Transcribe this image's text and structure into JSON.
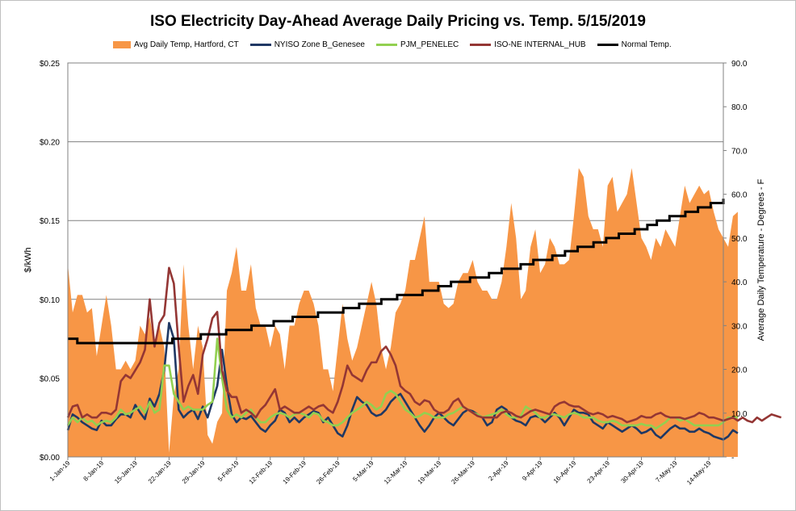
{
  "chart_data": {
    "type": "line",
    "title": "ISO Electricity Day-Ahead Average Daily Pricing vs. Temp. 5/15/2019",
    "ylabel": "$/kWh",
    "y2label": "Average Daily Temperature - Degrees - F",
    "ylim": [
      0,
      0.25
    ],
    "y2lim": [
      0,
      90
    ],
    "y_ticks": [
      "$0.00",
      "$0.05",
      "$0.10",
      "$0.15",
      "$0.20",
      "$0.25"
    ],
    "y2_ticks": [
      "-",
      "10.0",
      "20.0",
      "30.0",
      "40.0",
      "50.0",
      "60.0",
      "70.0",
      "80.0",
      "90.0"
    ],
    "x_ticks": [
      "1-Jan-19",
      "8-Jan-19",
      "15-Jan-19",
      "22-Jan-19",
      "29-Jan-19",
      "5-Feb-19",
      "12-Feb-19",
      "19-Feb-19",
      "26-Feb-19",
      "5-Mar-19",
      "12-Mar-19",
      "19-Mar-19",
      "26-Mar-19",
      "2-Apr-19",
      "9-Apr-19",
      "16-Apr-19",
      "23-Apr-19",
      "30-Apr-19",
      "7-May-19",
      "14-May-19"
    ],
    "x_start": "1-Jan-19",
    "x_end": "16-May-19",
    "grid": true,
    "legend_position": "top",
    "series": [
      {
        "name": "Avg Daily Temp, Hartford, CT",
        "type": "area",
        "axis": "right",
        "color": "#f79646",
        "values": [
          44,
          33,
          37,
          37,
          33,
          34,
          23,
          30,
          37,
          30,
          20,
          20,
          22,
          20,
          22,
          30,
          28,
          32,
          25,
          30,
          25,
          1,
          14,
          20,
          44,
          30,
          20,
          30,
          25,
          5,
          3,
          8,
          10,
          38,
          42,
          48,
          38,
          38,
          44,
          34,
          30,
          30,
          25,
          30,
          28,
          20,
          30,
          30,
          35,
          38,
          38,
          35,
          30,
          20,
          20,
          15,
          25,
          35,
          27,
          22,
          25,
          30,
          35,
          40,
          35,
          25,
          20,
          25,
          33,
          35,
          38,
          45,
          45,
          50,
          55,
          40,
          40,
          40,
          35,
          34,
          35,
          40,
          42,
          42,
          45,
          40,
          38,
          38,
          36,
          36,
          40,
          48,
          58,
          50,
          36,
          38,
          48,
          52,
          42,
          44,
          50,
          48,
          44,
          44,
          45,
          55,
          66,
          64,
          55,
          52,
          52,
          48,
          62,
          64,
          56,
          58,
          60,
          66,
          58,
          50,
          48,
          45,
          50,
          48,
          52,
          50,
          48,
          55,
          62,
          58,
          60,
          62,
          60,
          61,
          56,
          52,
          50,
          48,
          55,
          56
        ]
      },
      {
        "name": "NYISO Zone B_Genesee",
        "type": "line",
        "axis": "left",
        "color": "#1f3864",
        "values": [
          0.017,
          0.027,
          0.025,
          0.022,
          0.02,
          0.018,
          0.017,
          0.023,
          0.02,
          0.02,
          0.024,
          0.027,
          0.027,
          0.025,
          0.033,
          0.028,
          0.024,
          0.037,
          0.032,
          0.04,
          0.055,
          0.085,
          0.075,
          0.03,
          0.025,
          0.028,
          0.03,
          0.024,
          0.032,
          0.025,
          0.035,
          0.045,
          0.068,
          0.045,
          0.027,
          0.022,
          0.025,
          0.024,
          0.026,
          0.022,
          0.018,
          0.016,
          0.02,
          0.023,
          0.03,
          0.028,
          0.022,
          0.025,
          0.022,
          0.025,
          0.027,
          0.029,
          0.028,
          0.022,
          0.025,
          0.02,
          0.015,
          0.013,
          0.02,
          0.03,
          0.038,
          0.035,
          0.033,
          0.028,
          0.026,
          0.027,
          0.03,
          0.035,
          0.038,
          0.04,
          0.035,
          0.03,
          0.025,
          0.02,
          0.016,
          0.02,
          0.025,
          0.028,
          0.025,
          0.022,
          0.02,
          0.024,
          0.028,
          0.03,
          0.029,
          0.027,
          0.025,
          0.02,
          0.022,
          0.03,
          0.032,
          0.03,
          0.025,
          0.023,
          0.022,
          0.02,
          0.025,
          0.026,
          0.025,
          0.022,
          0.025,
          0.028,
          0.025,
          0.02,
          0.025,
          0.03,
          0.028,
          0.028,
          0.027,
          0.022,
          0.02,
          0.018,
          0.022,
          0.02,
          0.018,
          0.016,
          0.018,
          0.02,
          0.018,
          0.015,
          0.016,
          0.018,
          0.014,
          0.012,
          0.015,
          0.018,
          0.02,
          0.018,
          0.018,
          0.016,
          0.016,
          0.018,
          0.016,
          0.015,
          0.013,
          0.012,
          0.011,
          0.013,
          0.017,
          0.015
        ]
      },
      {
        "name": "PJM_PENELEC",
        "type": "line",
        "axis": "left",
        "color": "#92d050",
        "values": [
          0.02,
          0.025,
          0.022,
          0.025,
          0.022,
          0.023,
          0.02,
          0.022,
          0.023,
          0.022,
          0.025,
          0.03,
          0.027,
          0.028,
          0.03,
          0.032,
          0.028,
          0.035,
          0.028,
          0.03,
          0.058,
          0.058,
          0.04,
          0.035,
          0.03,
          0.032,
          0.03,
          0.03,
          0.03,
          0.033,
          0.035,
          0.075,
          0.05,
          0.03,
          0.025,
          0.027,
          0.025,
          0.028,
          0.03,
          0.025,
          0.022,
          0.022,
          0.025,
          0.027,
          0.028,
          0.027,
          0.025,
          0.027,
          0.028,
          0.027,
          0.025,
          0.028,
          0.027,
          0.023,
          0.022,
          0.02,
          0.02,
          0.022,
          0.025,
          0.028,
          0.03,
          0.032,
          0.035,
          0.033,
          0.03,
          0.032,
          0.04,
          0.042,
          0.04,
          0.035,
          0.03,
          0.028,
          0.025,
          0.026,
          0.028,
          0.027,
          0.025,
          0.025,
          0.025,
          0.027,
          0.028,
          0.03,
          0.032,
          0.03,
          0.028,
          0.027,
          0.025,
          0.026,
          0.027,
          0.028,
          0.03,
          0.027,
          0.025,
          0.025,
          0.026,
          0.032,
          0.03,
          0.028,
          0.025,
          0.025,
          0.027,
          0.027,
          0.026,
          0.025,
          0.027,
          0.028,
          0.027,
          0.025,
          0.025,
          0.025,
          0.023,
          0.022,
          0.022,
          0.023,
          0.022,
          0.02,
          0.02,
          0.02,
          0.02,
          0.021,
          0.02,
          0.02,
          0.018,
          0.02,
          0.022,
          0.025,
          0.025,
          0.023,
          0.024,
          0.022,
          0.02,
          0.02,
          0.02,
          0.02,
          0.02,
          0.02,
          0.022,
          0.025,
          0.025,
          0.025
        ]
      },
      {
        "name": "ISO-NE INTERNAL_HUB",
        "type": "line",
        "axis": "left",
        "color": "#943634",
        "values": [
          0.025,
          0.032,
          0.033,
          0.025,
          0.027,
          0.025,
          0.025,
          0.028,
          0.028,
          0.027,
          0.03,
          0.048,
          0.052,
          0.05,
          0.055,
          0.06,
          0.068,
          0.1,
          0.07,
          0.085,
          0.09,
          0.12,
          0.11,
          0.07,
          0.035,
          0.045,
          0.052,
          0.04,
          0.065,
          0.075,
          0.088,
          0.092,
          0.055,
          0.042,
          0.038,
          0.038,
          0.028,
          0.03,
          0.028,
          0.025,
          0.03,
          0.033,
          0.038,
          0.043,
          0.03,
          0.032,
          0.03,
          0.028,
          0.028,
          0.03,
          0.032,
          0.03,
          0.032,
          0.033,
          0.03,
          0.028,
          0.035,
          0.045,
          0.058,
          0.052,
          0.05,
          0.048,
          0.055,
          0.06,
          0.06,
          0.067,
          0.07,
          0.065,
          0.058,
          0.045,
          0.042,
          0.04,
          0.035,
          0.033,
          0.036,
          0.035,
          0.03,
          0.028,
          0.028,
          0.03,
          0.035,
          0.037,
          0.032,
          0.03,
          0.028,
          0.026,
          0.025,
          0.025,
          0.025,
          0.025,
          0.028,
          0.029,
          0.028,
          0.026,
          0.025,
          0.027,
          0.029,
          0.03,
          0.029,
          0.028,
          0.027,
          0.032,
          0.034,
          0.035,
          0.033,
          0.032,
          0.032,
          0.03,
          0.028,
          0.027,
          0.028,
          0.027,
          0.025,
          0.026,
          0.025,
          0.024,
          0.022,
          0.023,
          0.024,
          0.026,
          0.025,
          0.025,
          0.027,
          0.028,
          0.026,
          0.025,
          0.025,
          0.025,
          0.024,
          0.025,
          0.026,
          0.028,
          0.027,
          0.025,
          0.025,
          0.024,
          0.023,
          0.024,
          0.025,
          0.023,
          0.025,
          0.023,
          0.022,
          0.025,
          0.023,
          0.025,
          0.027,
          0.026,
          0.025
        ]
      },
      {
        "name": "Normal Temp.",
        "type": "step",
        "axis": "right",
        "color": "#000000",
        "points": [
          [
            1,
            27
          ],
          [
            4,
            26
          ],
          [
            34,
            27
          ],
          [
            43,
            28
          ],
          [
            51,
            29
          ],
          [
            59,
            30
          ],
          [
            66,
            31
          ],
          [
            72,
            32
          ],
          [
            80,
            33
          ],
          [
            88,
            34
          ],
          [
            93,
            35
          ],
          [
            100,
            36
          ],
          [
            105,
            37
          ],
          [
            113,
            38
          ],
          [
            118,
            39
          ],
          [
            122,
            40
          ],
          [
            128,
            41
          ],
          [
            134,
            42
          ],
          [
            138,
            43
          ],
          [
            144,
            44
          ],
          [
            148,
            45
          ],
          [
            154,
            46
          ],
          [
            158,
            47
          ],
          [
            162,
            48
          ],
          [
            167,
            49
          ],
          [
            171,
            50
          ],
          [
            175,
            51
          ],
          [
            180,
            52
          ],
          [
            184,
            53
          ],
          [
            187,
            54
          ],
          [
            191,
            55
          ],
          [
            196,
            56
          ],
          [
            200,
            57
          ],
          [
            204,
            58
          ],
          [
            208,
            59
          ]
        ]
      }
    ]
  }
}
